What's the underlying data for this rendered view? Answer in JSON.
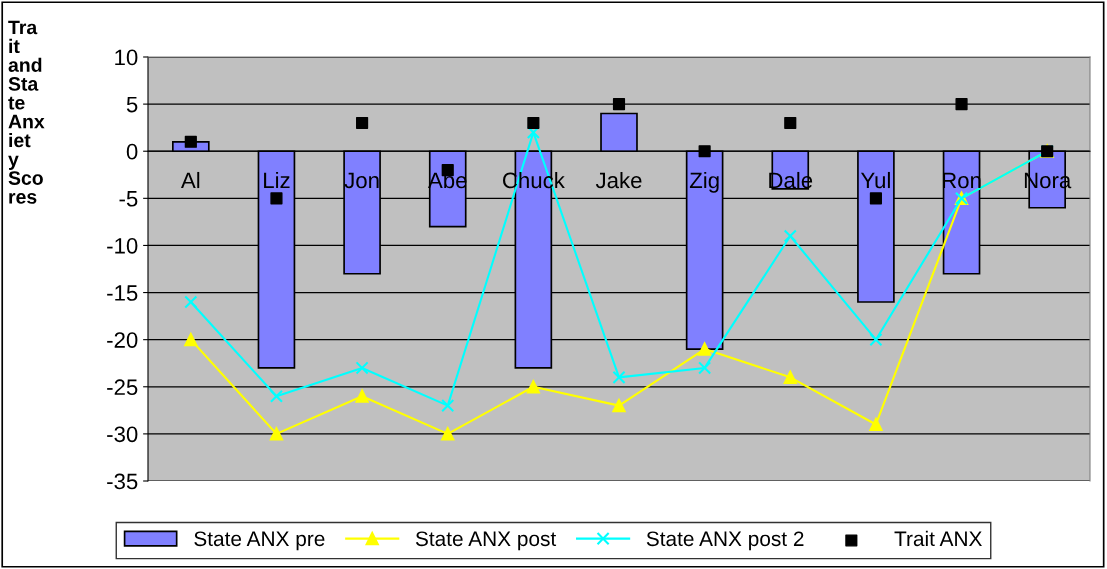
{
  "chart_data": {
    "type": "bar",
    "ylabel": "Trait and State Anxiety Scores",
    "categories": [
      "Al",
      "Liz",
      "Jon",
      "Abe",
      "Chuck",
      "Jake",
      "Zig",
      "Dale",
      "Yul",
      "Ron",
      "Nora"
    ],
    "series": [
      {
        "name": "State ANX pre",
        "color": "#8080ff",
        "values": [
          1,
          -23,
          -13,
          -8,
          -23,
          4,
          -21,
          -4,
          -16,
          -13,
          -6
        ]
      },
      {
        "name": "State ANX post",
        "type": "line",
        "color": "#ffff00",
        "marker": "triangle",
        "values": [
          -20,
          -30,
          -26,
          -30,
          -25,
          -27,
          -21,
          -24,
          -29,
          -5,
          0
        ]
      },
      {
        "name": "State ANX post 2",
        "type": "line",
        "color": "#00ffff",
        "marker": "cross",
        "values": [
          -16,
          -26,
          -23,
          -27,
          2,
          -24,
          -23,
          -9,
          -20,
          -5,
          0
        ]
      },
      {
        "name": "Trait ANX",
        "type": "scatter",
        "color": "#000000",
        "marker": "square",
        "values": [
          1,
          -5,
          3,
          -2,
          3,
          5,
          0,
          3,
          -5,
          5,
          0
        ]
      }
    ],
    "ylim": [
      -35,
      10
    ],
    "yticks": [
      -35,
      -30,
      -25,
      -20,
      -15,
      -10,
      -5,
      0,
      5,
      10
    ],
    "grid": "y",
    "legend": "bottom"
  }
}
